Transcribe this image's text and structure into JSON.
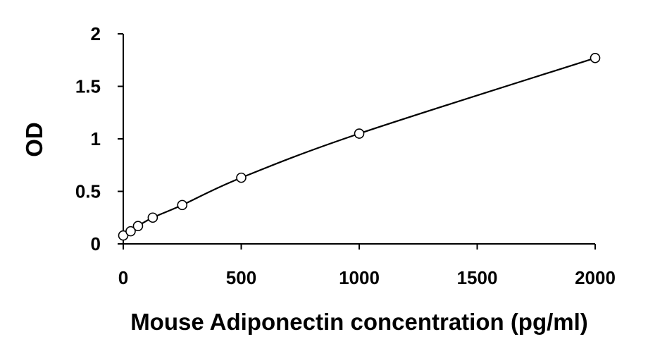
{
  "chart_data": {
    "type": "scatter",
    "title": "",
    "xlabel": "Mouse Adiponectin concentration (pg/ml)",
    "ylabel": "OD",
    "xlim": [
      0,
      2000
    ],
    "ylim": [
      0,
      2
    ],
    "xticks": [
      0,
      500,
      1000,
      1500,
      2000
    ],
    "yticks": [
      0,
      0.5,
      1,
      1.5,
      2
    ],
    "xtick_labels": [
      "0",
      "500",
      "1000",
      "1500",
      "2000"
    ],
    "ytick_labels": [
      "0",
      "0.5",
      "1",
      "1.5",
      "2"
    ],
    "grid": false,
    "legend": "none",
    "fit_line": true,
    "series": [
      {
        "x": [
          0,
          31.25,
          62.5,
          125,
          250,
          500,
          1000,
          2000
        ],
        "y": [
          0.08,
          0.12,
          0.17,
          0.25,
          0.37,
          0.63,
          1.05,
          1.77
        ]
      }
    ]
  }
}
